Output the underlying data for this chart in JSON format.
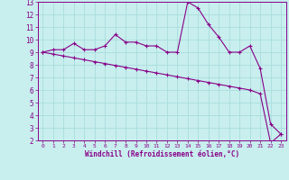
{
  "xlabel": "Windchill (Refroidissement éolien,°C)",
  "bg_color": "#c8eeee",
  "line_color": "#880088",
  "grid_color": "#aadddd",
  "spine_color": "#880088",
  "x_upper_line": [
    0,
    1,
    2,
    3,
    4,
    5,
    6,
    7,
    8,
    9,
    10,
    11,
    12,
    13,
    14,
    15,
    16,
    17,
    18,
    19,
    20,
    21,
    22,
    23
  ],
  "y_upper_line": [
    9.0,
    9.2,
    9.2,
    9.7,
    9.2,
    9.2,
    9.5,
    10.4,
    9.8,
    9.8,
    9.5,
    9.5,
    9.0,
    9.0,
    13.0,
    12.5,
    11.2,
    10.2,
    9.0,
    9.0,
    9.5,
    7.7,
    3.3,
    2.5
  ],
  "x_lower_line": [
    0,
    1,
    2,
    3,
    4,
    5,
    6,
    7,
    8,
    9,
    10,
    11,
    12,
    13,
    14,
    15,
    16,
    17,
    18,
    19,
    20,
    21,
    22,
    23
  ],
  "y_lower_line": [
    9.0,
    8.85,
    8.7,
    8.55,
    8.4,
    8.25,
    8.1,
    7.95,
    7.8,
    7.65,
    7.5,
    7.35,
    7.2,
    7.05,
    6.9,
    6.75,
    6.6,
    6.45,
    6.3,
    6.15,
    6.0,
    5.7,
    1.8,
    2.5
  ],
  "ylim": [
    2,
    13
  ],
  "xlim": [
    0,
    23
  ],
  "yticks": [
    2,
    3,
    4,
    5,
    6,
    7,
    8,
    9,
    10,
    11,
    12,
    13
  ],
  "xticks": [
    0,
    1,
    2,
    3,
    4,
    5,
    6,
    7,
    8,
    9,
    10,
    11,
    12,
    13,
    14,
    15,
    16,
    17,
    18,
    19,
    20,
    21,
    22,
    23
  ]
}
